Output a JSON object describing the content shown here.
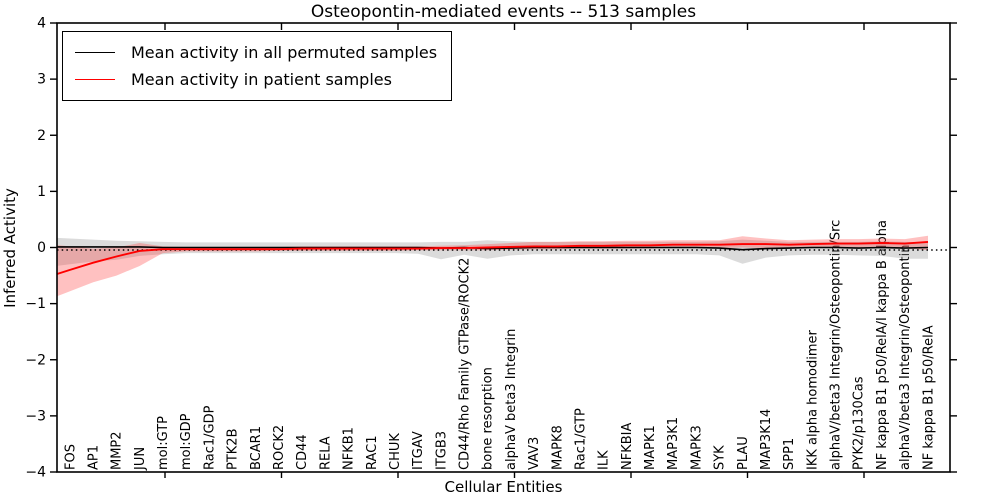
{
  "title": "Osteopontin-mediated events -- 513 samples",
  "legend": {
    "items": [
      {
        "label": "Mean activity in all permuted samples",
        "color": "#000000"
      },
      {
        "label": "Mean activity in patient samples",
        "color": "#ff0000"
      }
    ]
  },
  "axes": {
    "ylabel": "Inferred Activity",
    "xlabel": "Cellular Entities",
    "ytick_labels": [
      "4",
      "3",
      "2",
      "1",
      "0",
      "−1",
      "−2",
      "−3",
      "−4"
    ],
    "ytick_values": [
      4,
      3,
      2,
      1,
      0,
      -1,
      -2,
      -3,
      -4
    ]
  },
  "chart_data": {
    "type": "line",
    "title": "Osteopontin-mediated events -- 513 samples",
    "xlabel": "Cellular Entities",
    "ylabel": "Inferred Activity",
    "ylim": [
      -4,
      4
    ],
    "grid": false,
    "legend_position": "upper left",
    "zero_line_style": "dotted",
    "categories": [
      "FOS",
      "AP1",
      "MMP2",
      "JUN",
      "mol:GTP",
      "mol:GDP",
      "Rac1/GDP",
      "PTK2B",
      "BCAR1",
      "ROCK2",
      "CD44",
      "RELA",
      "NFKB1",
      "RAC1",
      "CHUK",
      "ITGAV",
      "ITGB3",
      "CD44/Rho Family GTPase/ROCK2",
      "bone resorption",
      "alphaV beta3 Integrin",
      "VAV3",
      "MAPK8",
      "Rac1/GTP",
      "ILK",
      "NFKBIA",
      "MAPK1",
      "MAP3K1",
      "MAPK3",
      "SYK",
      "PLAU",
      "MAP3K14",
      "SPP1",
      "IKK alpha homodimer",
      "alphaV/beta3 Integrin/Osteopontin/Src",
      "PYK2/p130Cas",
      "NF kappa B1 p50/RelA/I kappa B alpha",
      "alphaV/beta3 Integrin/Osteopontin",
      "NF kappa B1 p50/RelA"
    ],
    "series": [
      {
        "name": "Mean activity in all permuted samples",
        "color": "#000000",
        "band_color": "#999999",
        "band_opacity": 0.35,
        "values": [
          0.01,
          0.01,
          0.01,
          0.01,
          0,
          0,
          0,
          0,
          0,
          0,
          0,
          0,
          0,
          0,
          0,
          0,
          -0.01,
          0,
          -0.02,
          -0.01,
          0,
          0,
          0,
          0,
          0,
          0,
          0,
          0,
          -0.01,
          -0.04,
          -0.02,
          -0.01,
          0,
          0,
          -0.01,
          0,
          -0.01,
          0
        ],
        "band_top": [
          0.16,
          0.14,
          0.12,
          0.11,
          0.1,
          0.09,
          0.09,
          0.09,
          0.09,
          0.09,
          0.09,
          0.09,
          0.09,
          0.09,
          0.09,
          0.09,
          0.1,
          0.1,
          0.13,
          0.11,
          0.1,
          0.1,
          0.1,
          0.1,
          0.1,
          0.1,
          0.1,
          0.1,
          0.11,
          0.14,
          0.12,
          0.1,
          0.1,
          0.1,
          0.1,
          0.11,
          0.1,
          0.09
        ],
        "band_bottom": [
          -0.3,
          -0.25,
          -0.22,
          -0.15,
          -0.12,
          -0.1,
          -0.1,
          -0.1,
          -0.1,
          -0.1,
          -0.1,
          -0.1,
          -0.1,
          -0.1,
          -0.1,
          -0.11,
          -0.21,
          -0.13,
          -0.2,
          -0.14,
          -0.12,
          -0.12,
          -0.12,
          -0.12,
          -0.12,
          -0.12,
          -0.12,
          -0.12,
          -0.14,
          -0.29,
          -0.18,
          -0.14,
          -0.13,
          -0.13,
          -0.14,
          -0.15,
          -0.2,
          -0.2
        ]
      },
      {
        "name": "Mean activity in patient samples",
        "color": "#ff0000",
        "band_color": "#ff3333",
        "band_opacity": 0.3,
        "values": [
          -0.4,
          -0.27,
          -0.16,
          -0.06,
          -0.03,
          -0.03,
          -0.03,
          -0.03,
          -0.03,
          -0.03,
          -0.02,
          -0.02,
          -0.02,
          -0.02,
          -0.02,
          -0.02,
          -0.01,
          -0.01,
          0,
          0.01,
          0.02,
          0.02,
          0.03,
          0.03,
          0.04,
          0.04,
          0.05,
          0.05,
          0.05,
          0.06,
          0.06,
          0.05,
          0.06,
          0.07,
          0.07,
          0.08,
          0.07,
          0.1
        ],
        "band_top": [
          0.02,
          -0.02,
          0.0,
          0.08,
          0.02,
          0.01,
          0.01,
          0.01,
          0.01,
          0.01,
          0.02,
          0.02,
          0.02,
          0.02,
          0.02,
          0.02,
          0.03,
          0.04,
          0.06,
          0.08,
          0.1,
          0.1,
          0.11,
          0.11,
          0.12,
          0.12,
          0.13,
          0.13,
          0.13,
          0.2,
          0.16,
          0.13,
          0.14,
          0.15,
          0.15,
          0.16,
          0.15,
          0.21
        ],
        "band_bottom": [
          -0.78,
          -0.62,
          -0.5,
          -0.33,
          -0.1,
          -0.07,
          -0.07,
          -0.07,
          -0.07,
          -0.06,
          -0.06,
          -0.06,
          -0.06,
          -0.06,
          -0.06,
          -0.05,
          -0.05,
          -0.05,
          -0.05,
          -0.04,
          -0.03,
          -0.03,
          -0.02,
          -0.02,
          -0.02,
          -0.02,
          -0.01,
          -0.01,
          -0.01,
          0.0,
          -0.01,
          -0.02,
          -0.01,
          0.0,
          0.0,
          0.0,
          -0.01,
          -0.05
        ]
      }
    ]
  }
}
